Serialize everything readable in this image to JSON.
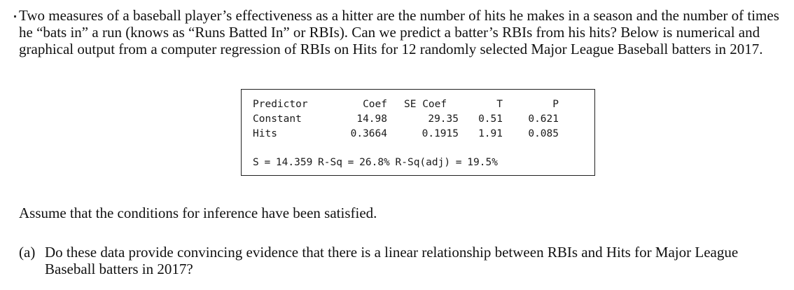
{
  "intro": "Two measures of a baseball player’s effectiveness as a hitter are the number of hits he makes in a season and the number of times he “bats in” a run (knows as “Runs Batted In” or RBIs). Can we predict a batter’s RBIs from his hits? Below is numerical and graphical output from a computer regression of RBIs on Hits for 12 randomly selected Major League Baseball batters in 2017.",
  "regression": {
    "headers": {
      "predictor": "Predictor",
      "coef": "Coef",
      "se_coef": "SE Coef",
      "t": "T",
      "p": "P"
    },
    "rows": [
      {
        "predictor": "Constant",
        "coef": "14.98",
        "se_coef": "29.35",
        "t": "0.51",
        "p": "0.621"
      },
      {
        "predictor": "Hits",
        "coef": "0.3664",
        "se_coef": "0.1915",
        "t": "1.91",
        "p": "0.085"
      }
    ],
    "summary": "S = 14.359 R-Sq = 26.8% R-Sq(adj) = 19.5%"
  },
  "assumption": "Assume that the conditions for inference have been satisfied.",
  "question_a": {
    "label": "(a)",
    "text": "Do these data provide convincing evidence that there is a linear relationship between RBIs and Hits for Major League Baseball batters in 2017?"
  }
}
